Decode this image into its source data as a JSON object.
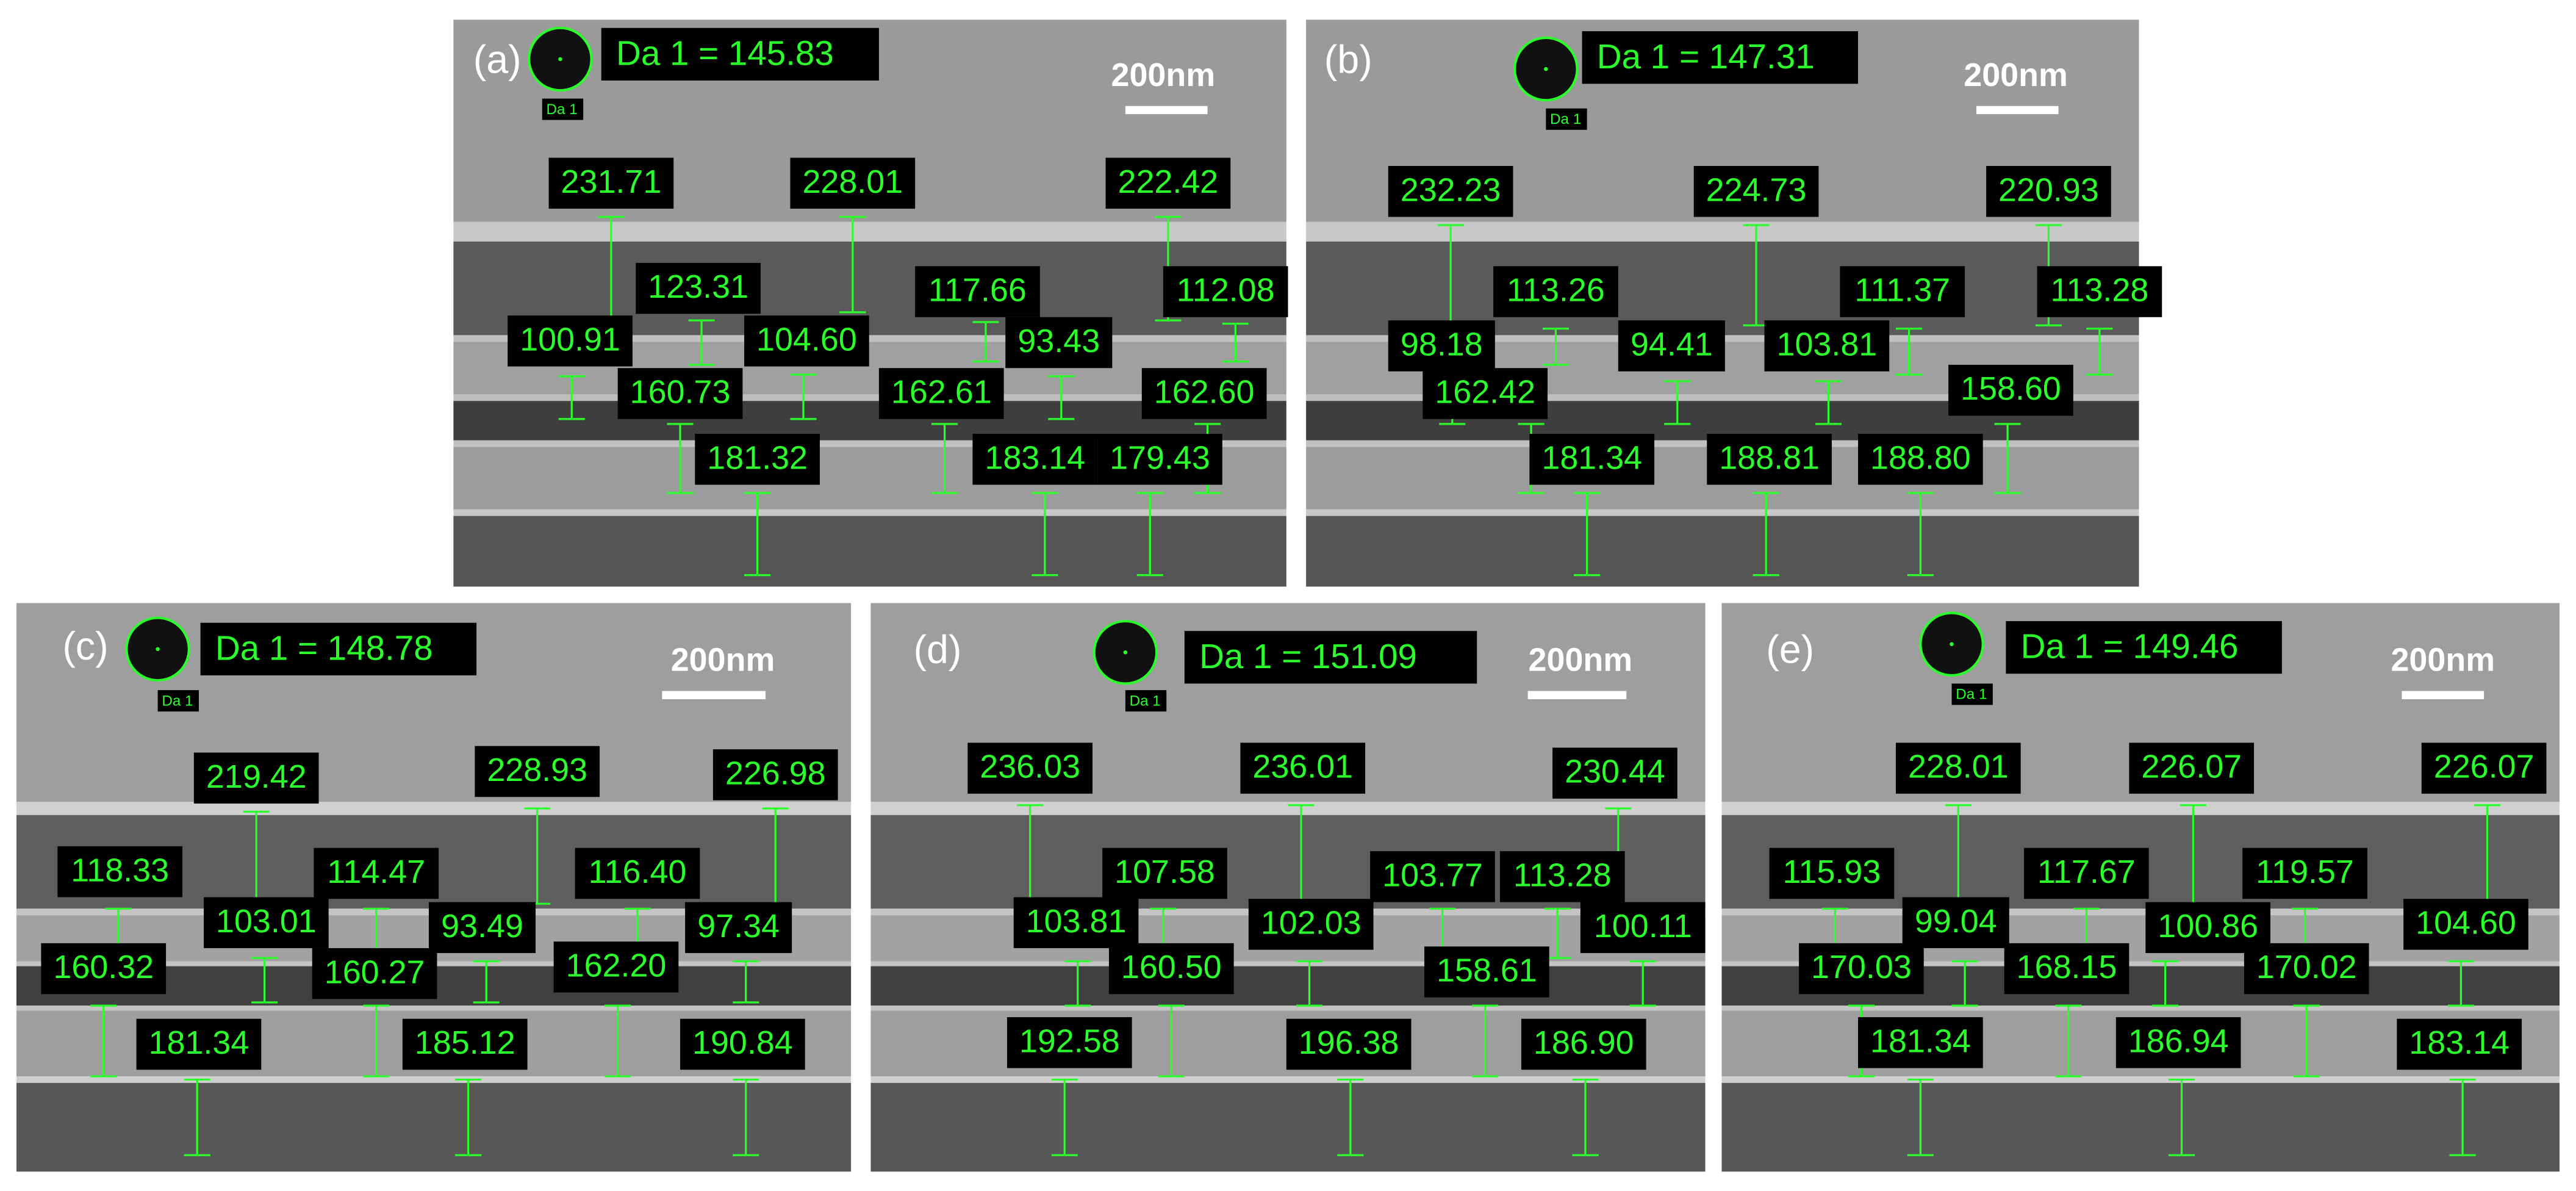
{
  "panels": [
    {
      "label": "(a)",
      "da_value": "Da 1 = 145.83",
      "da_tag": "Da 1",
      "scale": "200nm",
      "measurements": [
        "231.71",
        "228.01",
        "222.42",
        "123.31",
        "117.66",
        "112.08",
        "100.91",
        "104.60",
        "93.43",
        "160.73",
        "162.61",
        "162.60",
        "181.32",
        "183.14",
        "179.43"
      ]
    },
    {
      "label": "(b)",
      "da_value": "Da 1 = 147.31",
      "da_tag": "Da 1",
      "scale": "200nm",
      "measurements": [
        "232.23",
        "224.73",
        "220.93",
        "113.26",
        "111.37",
        "113.28",
        "98.18",
        "94.41",
        "103.81",
        "162.42",
        "158.60",
        "181.34",
        "188.81",
        "188.80"
      ]
    },
    {
      "label": "(c)",
      "da_value": "Da 1 = 148.78",
      "da_tag": "Da 1",
      "scale": "200nm",
      "measurements": [
        "219.42",
        "228.93",
        "226.98",
        "118.33",
        "114.47",
        "116.40",
        "103.01",
        "93.49",
        "97.34",
        "160.32",
        "160.27",
        "162.20",
        "181.34",
        "185.12",
        "190.84"
      ]
    },
    {
      "label": "(d)",
      "da_value": "Da 1 = 151.09",
      "da_tag": "Da 1",
      "scale": "200nm",
      "measurements": [
        "236.03",
        "236.01",
        "230.44",
        "107.58",
        "103.77",
        "113.28",
        "103.81",
        "102.03",
        "100.11",
        "160.50",
        "158.61",
        "192.58",
        "196.38",
        "186.90"
      ]
    },
    {
      "label": "(e)",
      "da_value": "Da 1 = 149.46",
      "da_tag": "Da 1",
      "scale": "200nm",
      "measurements": [
        "228.01",
        "226.07",
        "226.07",
        "115.93",
        "117.67",
        "119.57",
        "99.04",
        "100.86",
        "104.60",
        "170.03",
        "168.15",
        "170.02",
        "181.34",
        "186.94",
        "183.14"
      ]
    }
  ]
}
